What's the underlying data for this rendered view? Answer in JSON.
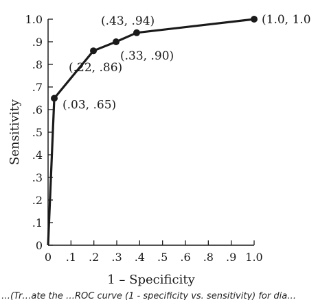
{
  "chart_data": {
    "type": "line",
    "xlabel": "1 – Specificity",
    "ylabel": "Sensitivity",
    "xlim": [
      0,
      1.0
    ],
    "ylim": [
      0,
      1.0
    ],
    "grid": false,
    "x_tick_labels": [
      "0",
      ".1",
      ".2",
      ".3",
      ".4",
      ".5",
      ".6",
      ".8",
      ".9",
      "1.0"
    ],
    "y_tick_labels": [
      "0",
      ".1",
      ".2",
      ".3",
      ".4",
      ".5",
      ".6",
      ".7",
      ".8",
      ".9",
      "1.0"
    ],
    "series": [
      {
        "x": [
          0,
          0.03,
          0.22,
          0.33,
          0.43,
          1.0
        ],
        "y": [
          0,
          0.65,
          0.86,
          0.9,
          0.94,
          1.0
        ]
      }
    ],
    "point_labels": [
      {
        "x": 0.03,
        "y": 0.65,
        "text": "(.03, .65)"
      },
      {
        "x": 0.22,
        "y": 0.86,
        "text": "(.22, .86)"
      },
      {
        "x": 0.33,
        "y": 0.9,
        "text": "(.33, .90)"
      },
      {
        "x": 0.43,
        "y": 0.94,
        "text": "(.43, .94)"
      },
      {
        "x": 1.0,
        "y": 1.0,
        "text": "(1.0, 1.0"
      }
    ],
    "caption": "…(Tr…ate the …ROC curve (1 - specificity vs. sensitivity) for dia…"
  }
}
